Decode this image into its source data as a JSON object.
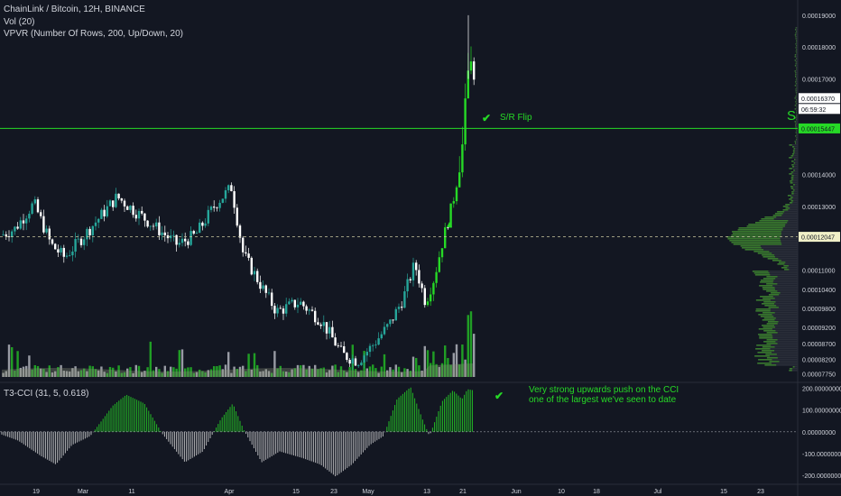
{
  "header": {
    "symbol_line": "ChainLink / Bitcoin, 12H, BINANCE",
    "volume_line": "Vol (20)",
    "vpvr_line": "VPVR (Number Of Rows, 200, Up/Down, 20)",
    "cci_line": "T3-CCI (31, 5, 0.618)"
  },
  "annotations": {
    "sr_flip": "S/R Flip",
    "cci_note_1": "Very strong upwards push on the CCI",
    "cci_note_2": "one of the largest we've seen to date",
    "edge_letter": "S"
  },
  "price_tags": {
    "last": "0.00016370",
    "countdown": "06:59:32",
    "sr_level": "0.00015447",
    "poc_level": "0.00012047"
  },
  "colors": {
    "background": "#131722",
    "up": "#26a69a",
    "up_bright": "#26d926",
    "down": "#ffffff",
    "sr_line": "#26d926",
    "dashed_line": "#c9c9a0",
    "volume": "#8a8f78",
    "vpvr_up": "#3d8c2c",
    "vpvr_down": "#2a2e39"
  },
  "chart_data": [
    {
      "type": "candlestick",
      "title": "ChainLink / Bitcoin, 12H, BINANCE",
      "x_ticks": [
        "19",
        "Mar",
        "11",
        "Apr",
        "15",
        "23",
        "May",
        "13",
        "21",
        "Jun",
        "10",
        "18",
        "Jul",
        "15",
        "23"
      ],
      "y_ticks": [
        "0.00019000",
        "0.00018000",
        "0.00017000",
        "0.00014000",
        "0.00013000",
        "0.00011000",
        "0.00010400",
        "0.00009800",
        "0.00009200",
        "0.00008700",
        "0.00008200",
        "0.00007750"
      ],
      "ylim": [
        7.65e-05,
        0.0001925
      ],
      "horizontal_levels": [
        {
          "name": "S/R Flip",
          "value": 0.00015447,
          "style": "solid"
        },
        {
          "name": "VPVR point of control",
          "value": 0.00012047,
          "style": "dashed"
        }
      ],
      "key_points": [
        {
          "label": "Feb late high",
          "value": 0.000131
        },
        {
          "label": "Mar high",
          "value": 0.000133
        },
        {
          "label": "Apr early high",
          "value": 0.000136
        },
        {
          "label": "May low",
          "value": 8.15e-05
        },
        {
          "label": "Breakout top",
          "value": 0.00019
        },
        {
          "label": "Last",
          "value": 0.0001637
        }
      ]
    },
    {
      "type": "bar",
      "title": "T3-CCI (31, 5, 0.618)",
      "y_ticks": [
        "200.00000000",
        "100.00000000",
        "0.00000000",
        "-100.00000000",
        "-200.00000000"
      ],
      "ylim": [
        -220,
        210
      ],
      "zero_line": 0,
      "key_points": [
        {
          "label": "Early Mar peak",
          "value": 170
        },
        {
          "label": "Mid Mar trough",
          "value": -150
        },
        {
          "label": "Apr peak",
          "value": 130
        },
        {
          "label": "Late Apr trough",
          "value": -205
        },
        {
          "label": "May peak",
          "value": 205
        },
        {
          "label": "Latest",
          "value": 190
        }
      ]
    }
  ]
}
